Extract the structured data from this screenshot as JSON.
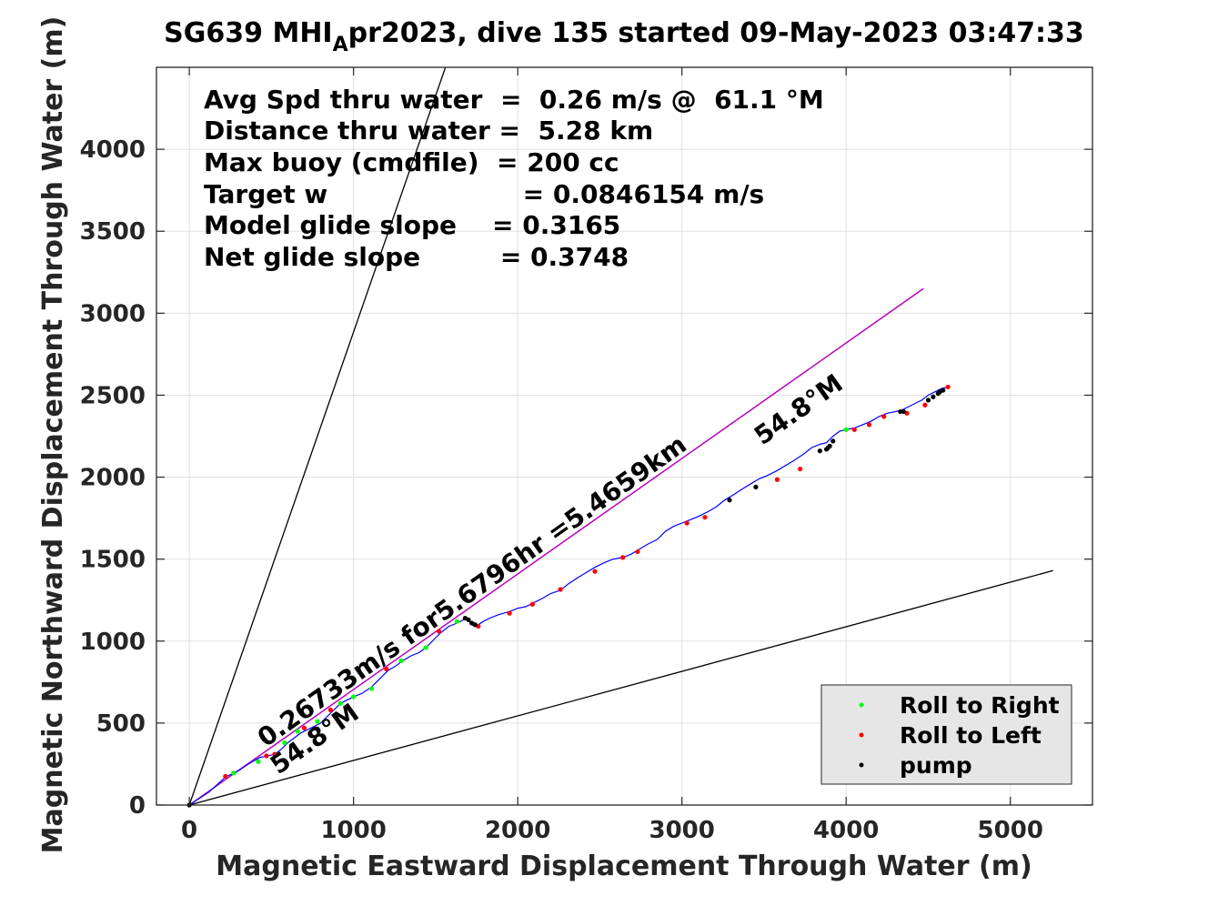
{
  "chart_data": {
    "type": "scatter",
    "title_main": "SG639 MHI",
    "title_sub": "A",
    "title_rest": "pr2023, dive 135 started 09-May-2023 03:47:33",
    "xlabel": "Magnetic Eastward Displacement Through Water (m)",
    "ylabel": "Magnetic Northward Displacement Through Water (m)",
    "xlim": [
      -200,
      5500
    ],
    "ylim": [
      0,
      4500
    ],
    "xticks": [
      0,
      1000,
      2000,
      3000,
      4000,
      5000
    ],
    "yticks": [
      0,
      500,
      1000,
      1500,
      2000,
      2500,
      3000,
      3500,
      4000
    ],
    "grid": true,
    "stats": [
      "Avg Spd thru water  =  0.26 m/s @  61.1 °M",
      "Distance thru water =  5.28 km",
      "Max buoy (cmdfile)  = 200 cc",
      "Target w                      = 0.0846154 m/s",
      "Model glide slope    = 0.3165",
      "Net glide slope         = 0.3748"
    ],
    "annotations": {
      "vector_label": "0.26733m/s for5.6796hr =5.4659km",
      "heading_label_upper": "54.8°M",
      "heading_label_lower": "54.8°M"
    },
    "reference_lines": [
      {
        "name": "",
        "x": [
          0,
          1560
        ],
        "y": [
          0,
          4500
        ],
        "color": "#000000"
      },
      {
        "name": "",
        "x": [
          0,
          5260
        ],
        "y": [
          0,
          1430
        ],
        "color": "#000000"
      },
      {
        "name": "",
        "x": [
          0,
          4470
        ],
        "y": [
          0,
          3150
        ],
        "color": "#000000"
      },
      {
        "name": "",
        "x": [
          0,
          4470
        ],
        "y": [
          0,
          3150
        ],
        "color": "#cc00cc"
      }
    ],
    "track": {
      "color": "#0000ff",
      "x": [
        0,
        120,
        220,
        300,
        360,
        430,
        480,
        520,
        560,
        600,
        640,
        680,
        720,
        760,
        800,
        840,
        880,
        920,
        960,
        1000,
        1050,
        1110,
        1160,
        1210,
        1260,
        1300,
        1350,
        1400,
        1440,
        1490,
        1530,
        1580,
        1630,
        1670,
        1700,
        1720,
        1740,
        1760,
        1790,
        1830,
        1880,
        1950,
        2000,
        2050,
        2090,
        2150,
        2200,
        2260,
        2310,
        2370,
        2420,
        2470,
        2530,
        2580,
        2640,
        2690,
        2740,
        2790,
        2850,
        2900,
        2950,
        3000,
        3050,
        3100,
        3160,
        3210,
        3260,
        3310,
        3370,
        3420,
        3470,
        3520,
        3580,
        3630,
        3680,
        3740,
        3790,
        3840,
        3880,
        3920,
        3960,
        4000,
        4050,
        4100,
        4150,
        4200,
        4250,
        4300,
        4340,
        4380,
        4420,
        4460,
        4500,
        4540,
        4580,
        4620
      ],
      "y": [
        0,
        80,
        170,
        210,
        250,
        290,
        300,
        310,
        340,
        380,
        410,
        440,
        460,
        480,
        500,
        540,
        580,
        620,
        640,
        660,
        680,
        720,
        770,
        820,
        850,
        880,
        910,
        930,
        960,
        1010,
        1050,
        1090,
        1110,
        1130,
        1130,
        1100,
        1090,
        1100,
        1120,
        1140,
        1160,
        1180,
        1200,
        1210,
        1230,
        1260,
        1290,
        1310,
        1350,
        1390,
        1420,
        1450,
        1480,
        1500,
        1510,
        1530,
        1560,
        1590,
        1620,
        1670,
        1700,
        1720,
        1740,
        1760,
        1790,
        1820,
        1860,
        1890,
        1930,
        1960,
        1990,
        2010,
        2040,
        2070,
        2100,
        2140,
        2180,
        2200,
        2210,
        2250,
        2280,
        2290,
        2300,
        2320,
        2340,
        2370,
        2390,
        2400,
        2410,
        2430,
        2450,
        2470,
        2500,
        2520,
        2540,
        2550
      ]
    },
    "series": [
      {
        "name": "Roll to Right",
        "color": "#00ff00",
        "x": [
          270,
          420,
          580,
          660,
          780,
          920,
          1000,
          1110,
          1290,
          1440,
          1630,
          4000
        ],
        "y": [
          195,
          265,
          380,
          450,
          510,
          620,
          660,
          710,
          880,
          960,
          1120,
          2290
        ]
      },
      {
        "name": "Roll to Left",
        "color": "#ff0000",
        "x": [
          220,
          470,
          520,
          700,
          860,
          1200,
          1520,
          1760,
          1950,
          2090,
          2260,
          2470,
          2640,
          2730,
          3030,
          3140,
          3580,
          3720,
          4050,
          4140,
          4230,
          4370,
          4480,
          4620
        ],
        "y": [
          175,
          300,
          310,
          470,
          580,
          830,
          1060,
          1090,
          1170,
          1225,
          1315,
          1425,
          1510,
          1545,
          1720,
          1755,
          1985,
          2050,
          2290,
          2320,
          2370,
          2390,
          2440,
          2550
        ]
      },
      {
        "name": "pump",
        "color": "#000000",
        "x": [
          0,
          1680,
          1700,
          1720,
          1740,
          3290,
          3450,
          3840,
          3880,
          3890,
          3900,
          3920,
          4330,
          4350,
          4500,
          4530,
          4560,
          4570,
          4590
        ],
        "y": [
          0,
          1140,
          1130,
          1110,
          1100,
          1860,
          1940,
          2160,
          2170,
          2180,
          2190,
          2220,
          2400,
          2400,
          2470,
          2490,
          2510,
          2520,
          2530
        ]
      }
    ]
  }
}
